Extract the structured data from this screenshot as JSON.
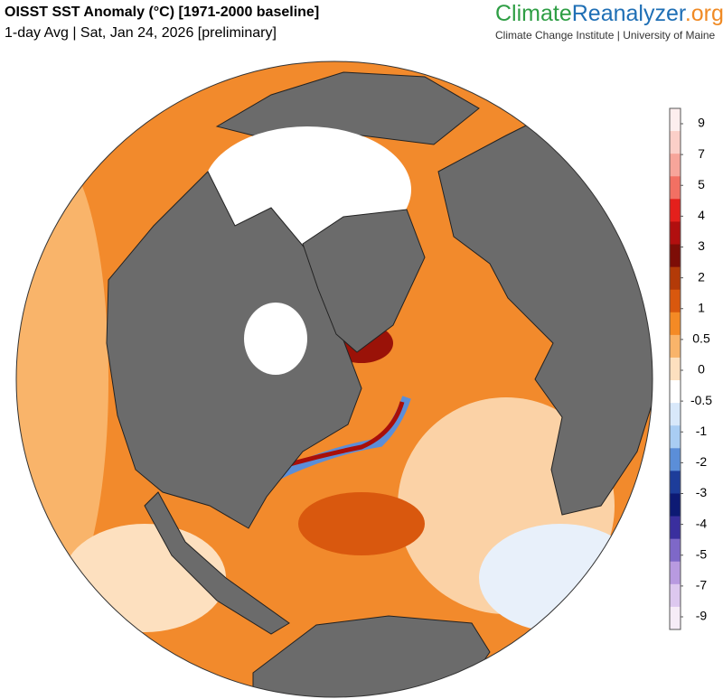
{
  "header": {
    "title": "OISST SST Anomaly (°C) [1971-2000 baseline]",
    "subtitle": "1-day Avg | Sat, Jan 24, 2026 [preliminary]",
    "brand": {
      "parts": [
        "Climate",
        "Reanalyzer",
        ".org"
      ],
      "colors": [
        "#2e9e44",
        "#1f6fb5",
        "#f08a24"
      ]
    },
    "institute": "Climate Change Institute | University of Maine"
  },
  "colorbar": {
    "ticks": [
      9,
      7,
      5,
      4,
      3,
      2,
      1,
      0.5,
      0,
      -0.5,
      -1,
      -2,
      -3,
      -4,
      -5,
      -7,
      -9
    ],
    "colors": [
      "#fdeeee",
      "#fbcfc8",
      "#f7a59a",
      "#f27063",
      "#e4201c",
      "#b10f0f",
      "#7d0d07",
      "#b33a08",
      "#d9580e",
      "#f48a25",
      "#f9b46a",
      "#fde0bf",
      "#ffffff",
      "#d8e8fa",
      "#a9cdf3",
      "#5b8ed8",
      "#1d3d9a",
      "#0d1a74",
      "#3a2f9e",
      "#7e68c8",
      "#b89ae0",
      "#ddc8ef",
      "#f6ecf7"
    ]
  }
}
